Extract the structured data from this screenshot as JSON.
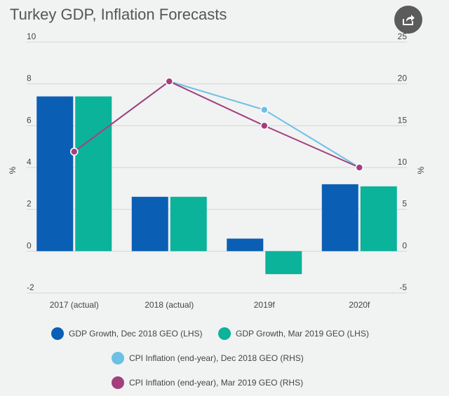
{
  "colors": {
    "gdp_dec": "#0a5fb4",
    "gdp_mar": "#0ab39a",
    "cpi_dec": "#6cc0e5",
    "cpi_mar": "#a1407d",
    "grid": "#d6d6d6",
    "share_bg": "#5b5b5b"
  },
  "icons": {
    "share": "share-icon"
  },
  "chart_data": {
    "type": "bar",
    "title": "Turkey GDP, Inflation Forecasts",
    "categories": [
      "2017 (actual)",
      "2018 (actual)",
      "2019f",
      "2020f"
    ],
    "left_axis": {
      "label": "%",
      "ylim": [
        -2,
        10
      ],
      "ticks": [
        -2,
        0,
        2,
        4,
        6,
        8,
        10
      ]
    },
    "right_axis": {
      "label": "%",
      "ylim": [
        -5,
        25
      ],
      "ticks": [
        -5,
        0,
        5,
        10,
        15,
        20,
        25
      ]
    },
    "grid": true,
    "series": [
      {
        "name": "GDP Growth, Dec 2018 GEO (LHS)",
        "type": "bar",
        "axis": "left",
        "color": "#0a5fb4",
        "values": [
          7.4,
          2.6,
          0.6,
          3.2
        ]
      },
      {
        "name": "GDP Growth, Mar 2019 GEO (LHS)",
        "type": "bar",
        "axis": "left",
        "color": "#0ab39a",
        "values": [
          7.4,
          2.6,
          -1.1,
          3.1
        ]
      },
      {
        "name": "CPI Inflation (end-year), Dec 2018 GEO (RHS)",
        "type": "line",
        "axis": "right",
        "color": "#6cc0e5",
        "values": [
          11.9,
          20.3,
          16.9,
          10.0
        ]
      },
      {
        "name": "CPI Inflation (end-year), Mar 2019 GEO (RHS)",
        "type": "line",
        "axis": "right",
        "color": "#a1407d",
        "values": [
          11.9,
          20.3,
          15.0,
          10.0
        ]
      }
    ],
    "legend_position": "bottom"
  }
}
